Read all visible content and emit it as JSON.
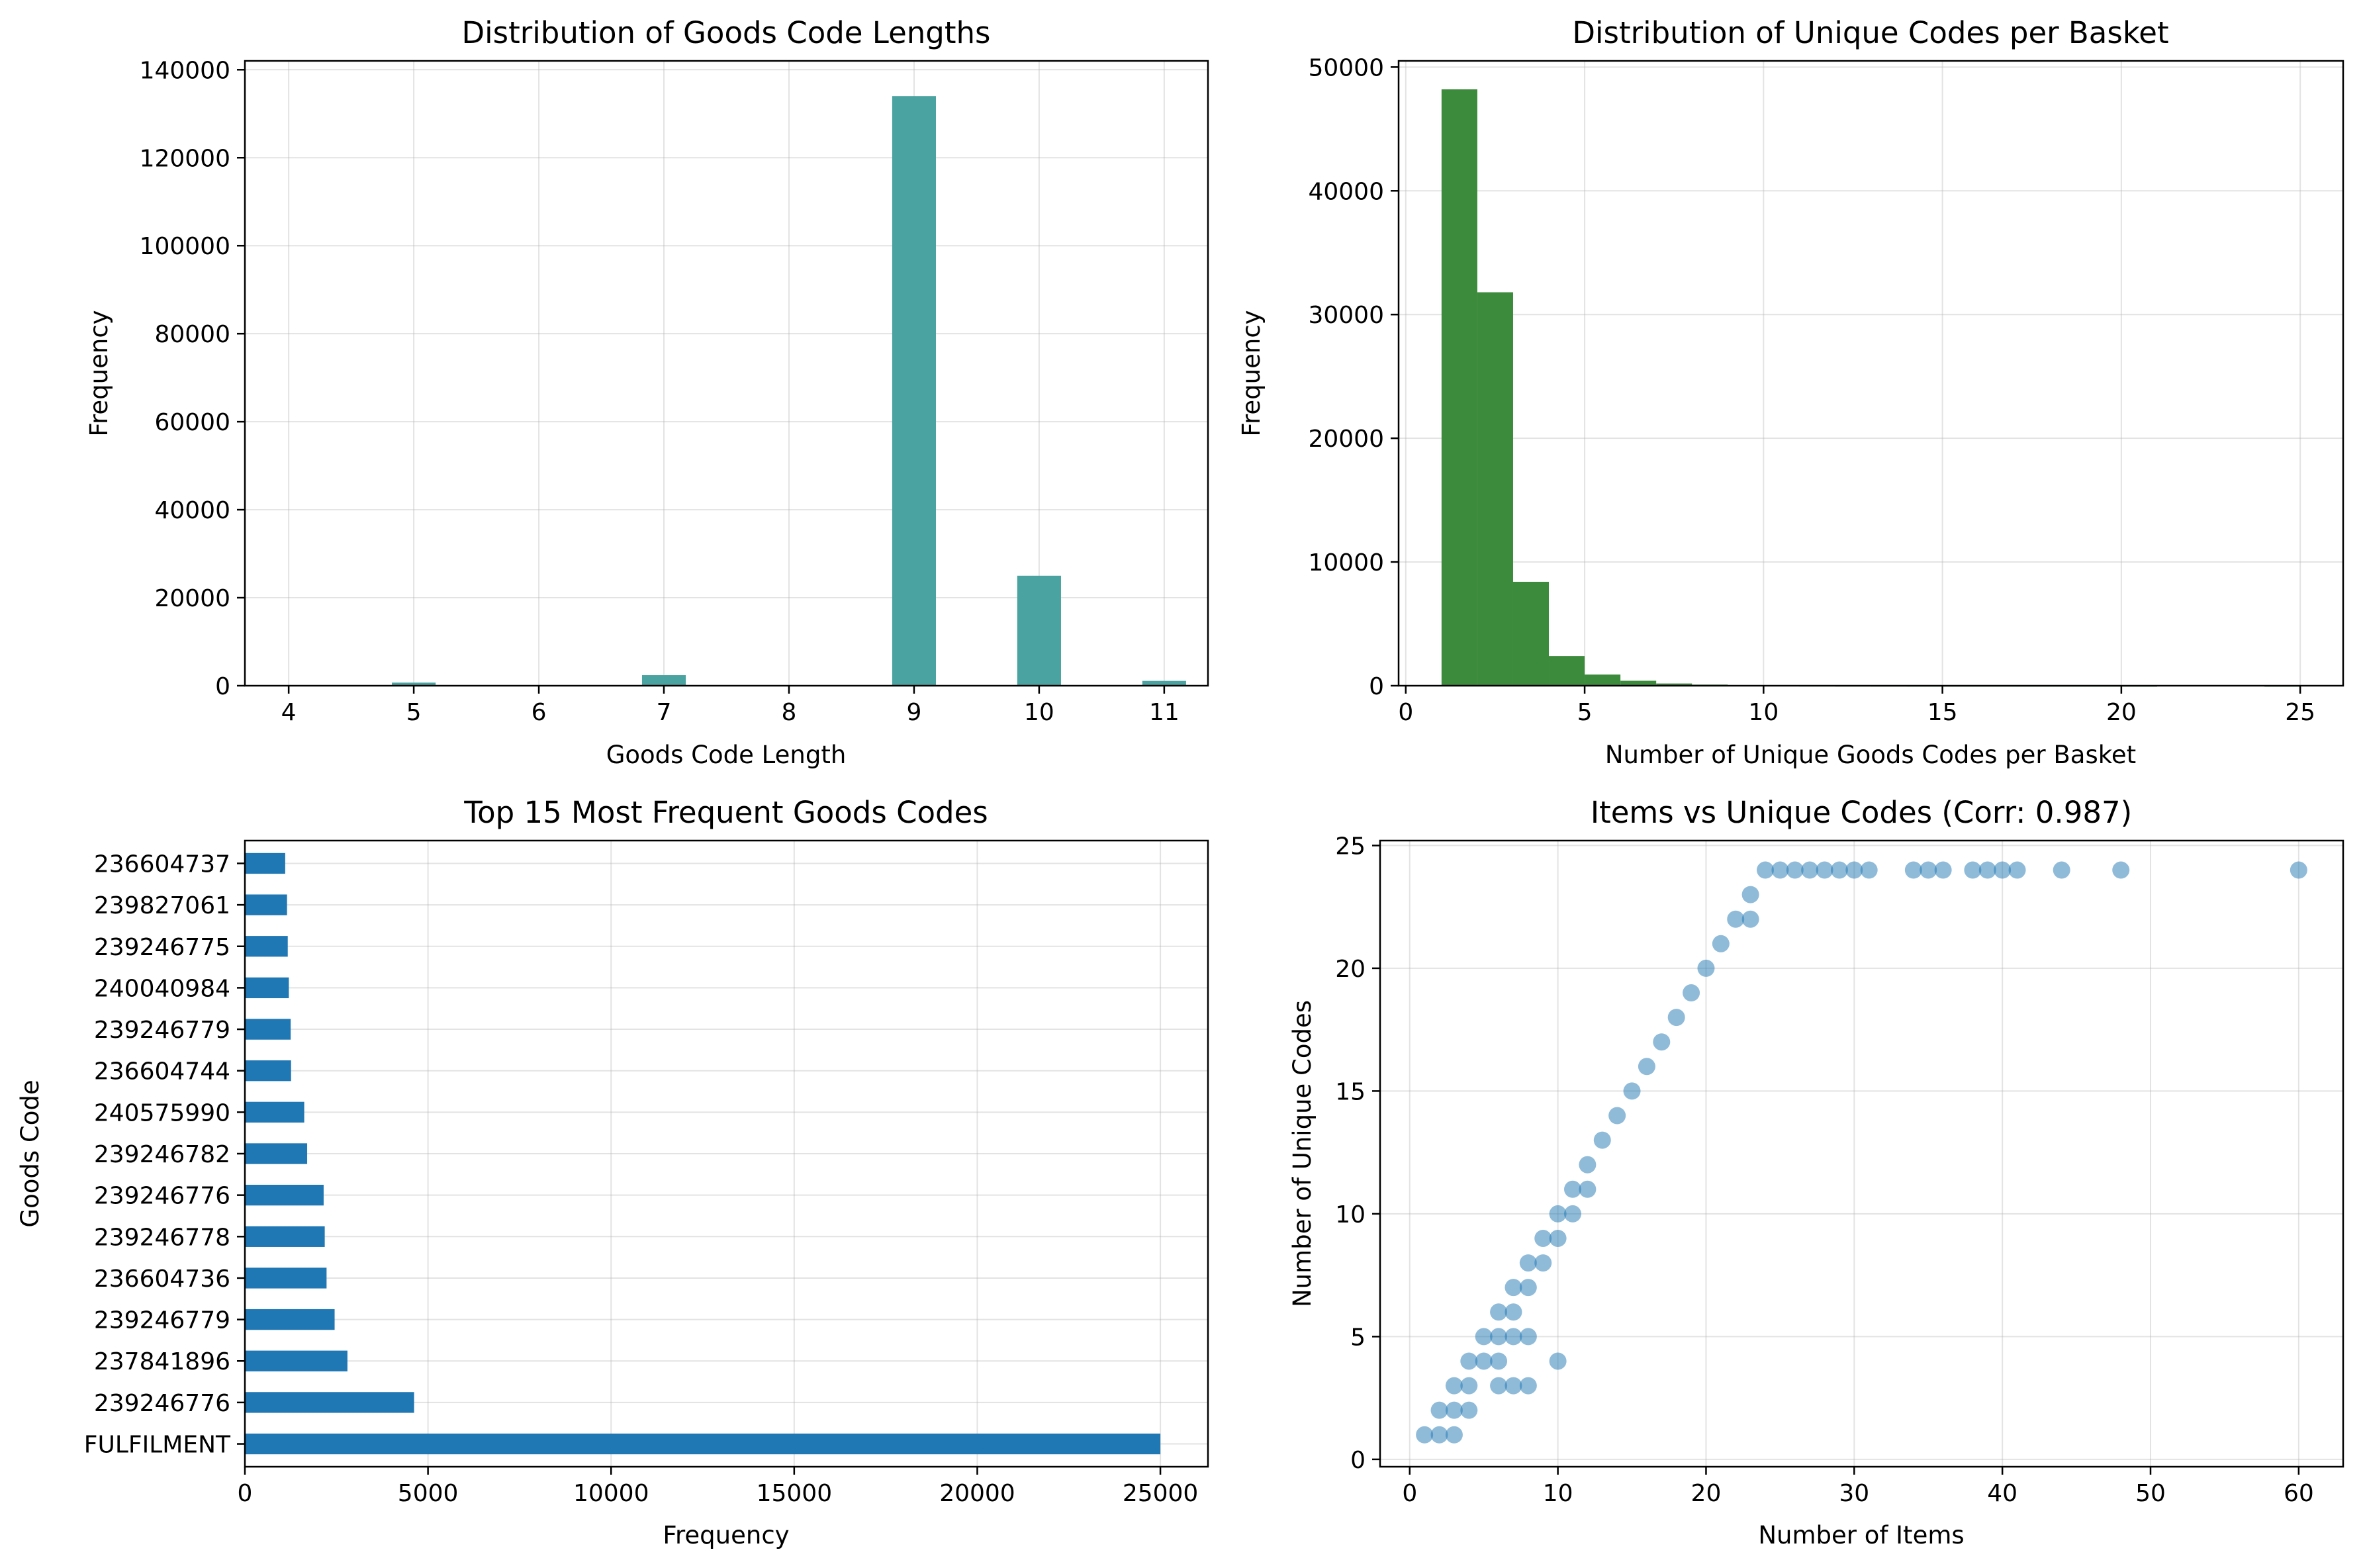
{
  "chart_data": [
    {
      "type": "bar",
      "title": "Distribution of Goods Code Lengths",
      "xlabel": "Goods Code Length",
      "ylabel": "Frequency",
      "color": "#4aa3a0",
      "grid": true,
      "xlim": [
        3.65,
        11.35
      ],
      "ylim": [
        0,
        142000
      ],
      "xticks": [
        4,
        5,
        6,
        7,
        8,
        9,
        10,
        11
      ],
      "yticks": [
        0,
        20000,
        40000,
        60000,
        80000,
        100000,
        120000,
        140000
      ],
      "bin_width": 0.35,
      "bars": [
        {
          "x": 4,
          "value": 0
        },
        {
          "x": 5,
          "value": 700
        },
        {
          "x": 6,
          "value": 0
        },
        {
          "x": 7,
          "value": 2400
        },
        {
          "x": 8,
          "value": 0
        },
        {
          "x": 9,
          "value": 134000
        },
        {
          "x": 10,
          "value": 25000
        },
        {
          "x": 11,
          "value": 1100
        }
      ]
    },
    {
      "type": "bar",
      "title": "Distribution of Unique Codes per Basket",
      "xlabel": "Number of Unique Goods Codes per Basket",
      "ylabel": "Frequency",
      "color": "#3c8a3c",
      "grid": true,
      "xlim": [
        -0.2,
        26.2
      ],
      "ylim": [
        0,
        50500
      ],
      "xticks": [
        0,
        5,
        10,
        15,
        20,
        25
      ],
      "yticks": [
        0,
        10000,
        20000,
        30000,
        40000,
        50000
      ],
      "bin_start": 1,
      "bin_width": 1,
      "values": [
        48200,
        31800,
        8400,
        2400,
        900,
        400,
        180,
        90,
        50,
        30,
        20,
        12,
        8,
        5,
        3,
        2,
        1,
        1,
        1,
        1,
        0,
        0,
        0,
        1
      ]
    },
    {
      "type": "bar",
      "orientation": "horizontal",
      "title": "Top 15 Most Frequent Goods Codes",
      "xlabel": "Frequency",
      "ylabel": "Goods Code",
      "color": "#1f77b4",
      "grid": true,
      "xlim": [
        0,
        26300
      ],
      "xticks": [
        0,
        5000,
        10000,
        15000,
        20000,
        25000
      ],
      "categories": [
        "236604737",
        "239827061",
        "239246775",
        "240040984",
        "239246779",
        "236604744",
        "240575990",
        "239246782",
        "239246776",
        "239246778",
        "236604736",
        "239246779",
        "237841896",
        "239246776",
        "FULFILMENT"
      ],
      "values": [
        1100,
        1150,
        1170,
        1200,
        1250,
        1260,
        1620,
        1700,
        2150,
        2180,
        2230,
        2450,
        2800,
        4620,
        25000
      ]
    },
    {
      "type": "scatter",
      "title": "Items vs Unique Codes (Corr: 0.987)",
      "xlabel": "Number of Items",
      "ylabel": "Number of Unique Codes",
      "color": "#1f77b4",
      "alpha": 0.5,
      "grid": true,
      "xlim": [
        -2,
        63
      ],
      "ylim": [
        -0.3,
        25.2
      ],
      "xticks": [
        0,
        10,
        20,
        30,
        40,
        50,
        60
      ],
      "yticks": [
        0,
        5,
        10,
        15,
        20,
        25
      ],
      "points": [
        [
          1,
          1
        ],
        [
          2,
          1
        ],
        [
          3,
          1
        ],
        [
          2,
          2
        ],
        [
          3,
          2
        ],
        [
          3,
          3
        ],
        [
          4,
          3
        ],
        [
          4,
          2
        ],
        [
          4,
          4
        ],
        [
          5,
          4
        ],
        [
          6,
          4
        ],
        [
          5,
          5
        ],
        [
          6,
          5
        ],
        [
          7,
          5
        ],
        [
          8,
          5
        ],
        [
          6,
          6
        ],
        [
          7,
          6
        ],
        [
          7,
          7
        ],
        [
          8,
          7
        ],
        [
          8,
          8
        ],
        [
          9,
          8
        ],
        [
          9,
          9
        ],
        [
          10,
          9
        ],
        [
          10,
          10
        ],
        [
          11,
          10
        ],
        [
          11,
          11
        ],
        [
          12,
          11
        ],
        [
          12,
          12
        ],
        [
          13,
          13
        ],
        [
          14,
          14
        ],
        [
          15,
          15
        ],
        [
          16,
          16
        ],
        [
          17,
          17
        ],
        [
          18,
          18
        ],
        [
          19,
          19
        ],
        [
          20,
          20
        ],
        [
          21,
          21
        ],
        [
          22,
          22
        ],
        [
          23,
          22
        ],
        [
          23,
          23
        ],
        [
          6,
          3
        ],
        [
          7,
          3
        ],
        [
          8,
          3
        ],
        [
          10,
          4
        ],
        [
          24,
          24
        ],
        [
          25,
          24
        ],
        [
          26,
          24
        ],
        [
          27,
          24
        ],
        [
          28,
          24
        ],
        [
          29,
          24
        ],
        [
          30,
          24
        ],
        [
          31,
          24
        ],
        [
          34,
          24
        ],
        [
          35,
          24
        ],
        [
          36,
          24
        ],
        [
          38,
          24
        ],
        [
          39,
          24
        ],
        [
          40,
          24
        ],
        [
          41,
          24
        ],
        [
          44,
          24
        ],
        [
          48,
          24
        ],
        [
          60,
          24
        ]
      ]
    }
  ]
}
